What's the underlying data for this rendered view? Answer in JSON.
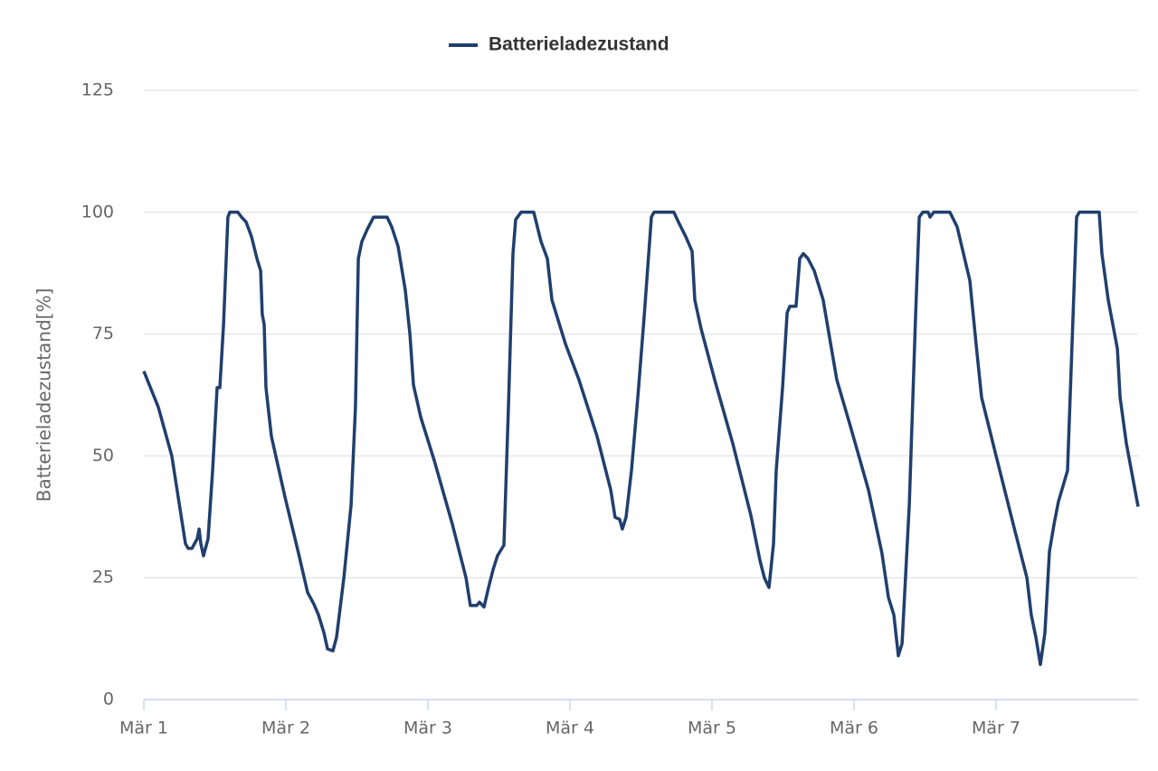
{
  "chart_data": {
    "type": "line",
    "y_label": "Batterieladezustand[%]",
    "xlim": [
      1,
      8
    ],
    "ylim": [
      0,
      125
    ],
    "yticks": [
      0,
      25,
      50,
      75,
      100,
      125
    ],
    "xticks": [
      {
        "value": 1,
        "label": "Mär 1"
      },
      {
        "value": 2,
        "label": "Mär 2"
      },
      {
        "value": 3,
        "label": "Mär 3"
      },
      {
        "value": 4,
        "label": "Mär 4"
      },
      {
        "value": 5,
        "label": "Mär 5"
      },
      {
        "value": 6,
        "label": "Mär 6"
      },
      {
        "value": 7,
        "label": "Mär 7"
      }
    ],
    "grid": true,
    "legend": "top",
    "x": [
      1.0,
      1.102,
      1.197,
      1.293,
      1.312,
      1.338,
      1.376,
      1.389,
      1.401,
      1.42,
      1.452,
      1.484,
      1.516,
      1.535,
      1.561,
      1.592,
      1.605,
      1.662,
      1.688,
      1.72,
      1.758,
      1.796,
      1.822,
      1.834,
      1.847,
      1.86,
      1.898,
      1.994,
      2.089,
      2.153,
      2.197,
      2.229,
      2.268,
      2.293,
      2.331,
      2.357,
      2.408,
      2.459,
      2.49,
      2.51,
      2.535,
      2.573,
      2.618,
      2.713,
      2.745,
      2.79,
      2.841,
      2.873,
      2.898,
      2.949,
      3.045,
      3.172,
      3.268,
      3.299,
      3.344,
      3.363,
      3.395,
      3.427,
      3.459,
      3.49,
      3.535,
      3.567,
      3.599,
      3.618,
      3.656,
      3.745,
      3.796,
      3.841,
      3.873,
      3.968,
      4.064,
      4.191,
      4.287,
      4.318,
      4.35,
      4.369,
      4.395,
      4.433,
      4.478,
      4.522,
      4.573,
      4.592,
      4.732,
      4.764,
      4.815,
      4.86,
      4.879,
      4.924,
      5.019,
      5.146,
      5.274,
      5.338,
      5.369,
      5.401,
      5.433,
      5.452,
      5.497,
      5.529,
      5.548,
      5.592,
      5.618,
      5.643,
      5.675,
      5.72,
      5.783,
      5.847,
      5.879,
      5.975,
      6.102,
      6.197,
      6.242,
      6.28,
      6.312,
      6.338,
      6.389,
      6.433,
      6.459,
      6.484,
      6.522,
      6.535,
      6.561,
      6.675,
      6.726,
      6.771,
      6.815,
      6.866,
      6.898,
      6.994,
      7.121,
      7.217,
      7.248,
      7.28,
      7.312,
      7.344,
      7.376,
      7.408,
      7.439,
      7.503,
      7.535,
      7.567,
      7.586,
      7.726,
      7.745,
      7.79,
      7.854,
      7.873,
      7.917,
      8.0
    ],
    "series": [
      {
        "name": "Batterieladezustand",
        "color": "#203f6e",
        "values": [
          67.4,
          60,
          50,
          32,
          31,
          31,
          33,
          35,
          32,
          29.5,
          33,
          47,
          64,
          64,
          77,
          99,
          100,
          100,
          99,
          98,
          95,
          90.5,
          88,
          79,
          77,
          64,
          54,
          41.5,
          30,
          22,
          19.6,
          17.4,
          13.7,
          10.4,
          10,
          12.8,
          25,
          40,
          60,
          90.5,
          94,
          96.5,
          99,
          99,
          97,
          93,
          84,
          75,
          64.6,
          58,
          49,
          36,
          25,
          19.3,
          19.3,
          20,
          19,
          23,
          26.7,
          29.5,
          31.7,
          60,
          91.5,
          98.5,
          100,
          100,
          94,
          90.5,
          82,
          73,
          65.6,
          54,
          43,
          37.4,
          37,
          35,
          37.4,
          47,
          62,
          78.5,
          99,
          100,
          100,
          98,
          95,
          92,
          82,
          76,
          65.6,
          52.6,
          37.8,
          28.5,
          25,
          23,
          32,
          47,
          64,
          79.4,
          80.7,
          80.7,
          90.5,
          91.5,
          90.5,
          88,
          82,
          71,
          65.6,
          56,
          43,
          30,
          21,
          17.4,
          9,
          11.5,
          40,
          78.5,
          99,
          100,
          100,
          99,
          100,
          100,
          97,
          91.5,
          86,
          71,
          62,
          50.7,
          36,
          25,
          17.4,
          12.8,
          7.2,
          13.7,
          30.4,
          36,
          40.6,
          47,
          73,
          99,
          100,
          100,
          91.5,
          82,
          72,
          62,
          52.6,
          39.6
        ]
      }
    ]
  }
}
